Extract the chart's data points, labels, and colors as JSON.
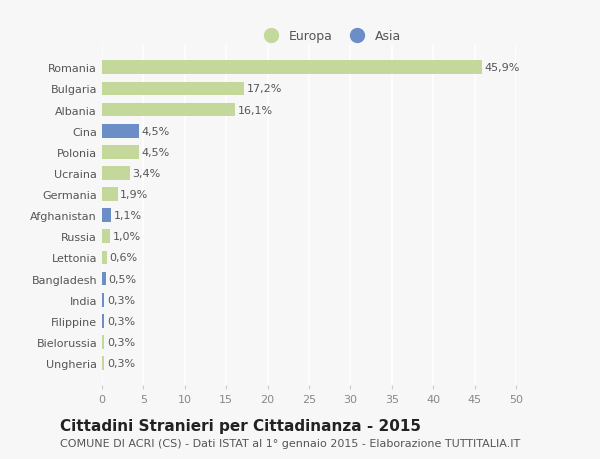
{
  "categories": [
    "Ungheria",
    "Bielorussia",
    "Filippine",
    "India",
    "Bangladesh",
    "Lettonia",
    "Russia",
    "Afghanistan",
    "Germania",
    "Ucraina",
    "Polonia",
    "Cina",
    "Albania",
    "Bulgaria",
    "Romania"
  ],
  "values": [
    0.3,
    0.3,
    0.3,
    0.3,
    0.5,
    0.6,
    1.0,
    1.1,
    1.9,
    3.4,
    4.5,
    4.5,
    16.1,
    17.2,
    45.9
  ],
  "labels": [
    "0,3%",
    "0,3%",
    "0,3%",
    "0,3%",
    "0,5%",
    "0,6%",
    "1,0%",
    "1,1%",
    "1,9%",
    "3,4%",
    "4,5%",
    "4,5%",
    "16,1%",
    "17,2%",
    "45,9%"
  ],
  "continent": [
    "Europa",
    "Europa",
    "Asia",
    "Asia",
    "Asia",
    "Europa",
    "Europa",
    "Asia",
    "Europa",
    "Europa",
    "Europa",
    "Asia",
    "Europa",
    "Europa",
    "Europa"
  ],
  "color_europa": "#c5d89b",
  "color_asia": "#6b8ec7",
  "title": "Cittadini Stranieri per Cittadinanza - 2015",
  "subtitle": "COMUNE DI ACRI (CS) - Dati ISTAT al 1° gennaio 2015 - Elaborazione TUTTITALIA.IT",
  "legend_europa": "Europa",
  "legend_asia": "Asia",
  "xlim": [
    0,
    50
  ],
  "xticks": [
    0,
    5,
    10,
    15,
    20,
    25,
    30,
    35,
    40,
    45,
    50
  ],
  "background_color": "#f7f7f7",
  "grid_color": "#ffffff",
  "bar_height": 0.65,
  "title_fontsize": 11,
  "subtitle_fontsize": 8,
  "label_fontsize": 8,
  "tick_fontsize": 8,
  "legend_fontsize": 9
}
